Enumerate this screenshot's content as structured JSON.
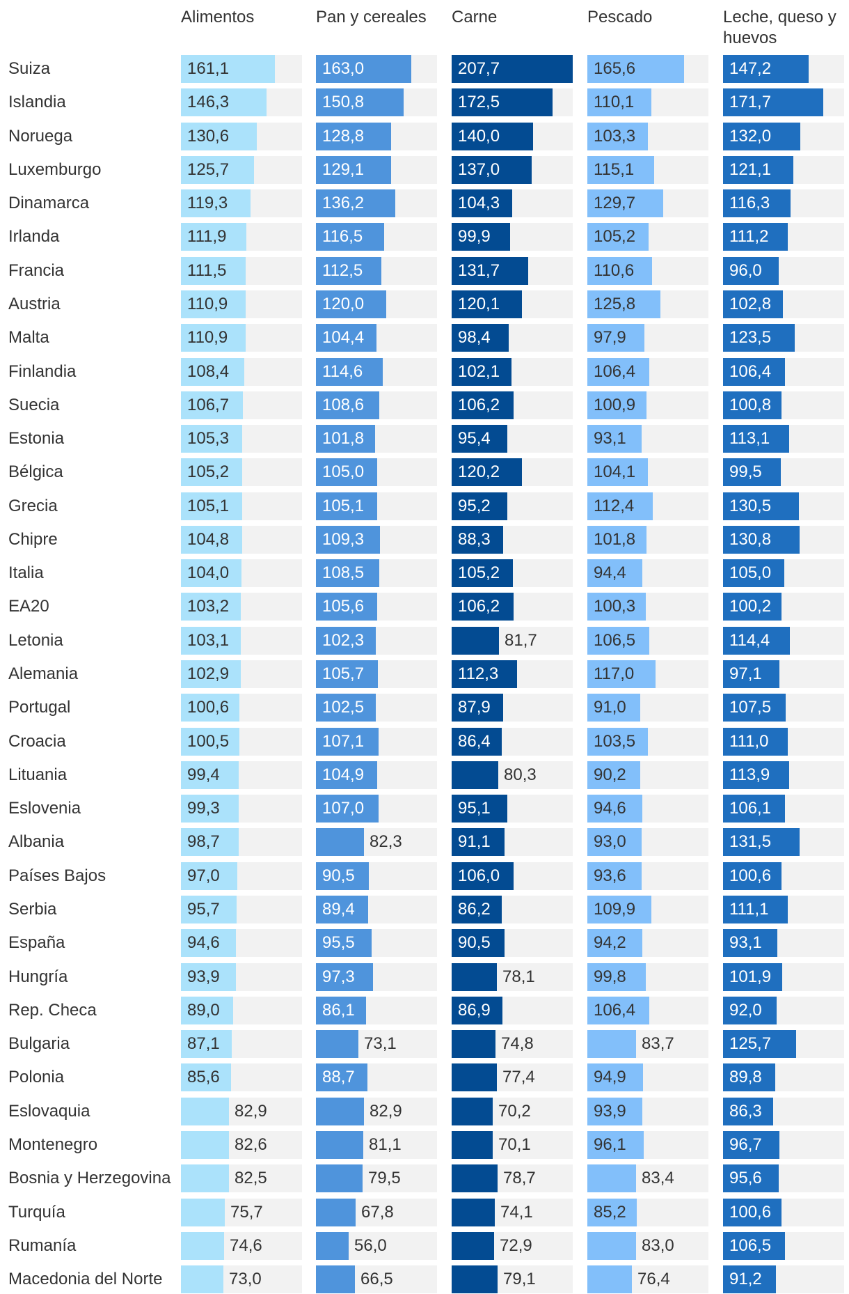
{
  "chart_data": {
    "type": "bar",
    "orientation": "horizontal",
    "columns": [
      {
        "name": "Alimentos",
        "color": "#abe2fb"
      },
      {
        "name": "Pan y cereales",
        "color": "#4f94dc"
      },
      {
        "name": "Carne",
        "color": "#034b92"
      },
      {
        "name": "Pescado",
        "color": "#82bffa"
      },
      {
        "name": "Leche, queso y huevos",
        "color": "#1f6fbf"
      }
    ],
    "value_labels": [
      "161,1",
      "163,0",
      "207,7",
      "165,6",
      "147,2",
      "146,3",
      "150,8",
      "172,5",
      "110,1",
      "171,7",
      "130,6",
      "128,8",
      "140,0",
      "103,3",
      "132,0",
      "125,7",
      "129,1",
      "137,0",
      "115,1",
      "121,1",
      "119,3",
      "136,2",
      "104,3",
      "129,7",
      "116,3",
      "111,9",
      "116,5",
      "99,9",
      "105,2",
      "111,2",
      "111,5",
      "112,5",
      "131,7",
      "110,6",
      "96,0",
      "110,9",
      "120,0",
      "120,1",
      "125,8",
      "102,8",
      "110,9",
      "104,4",
      "98,4",
      "97,9",
      "123,5",
      "108,4",
      "114,6",
      "102,1",
      "106,4",
      "106,4",
      "106,7",
      "108,6",
      "106,2",
      "100,9",
      "100,8",
      "105,3",
      "101,8",
      "95,4",
      "93,1",
      "113,1",
      "105,2",
      "105,0",
      "120,2",
      "104,1",
      "99,5",
      "105,1",
      "105,1",
      "95,2",
      "112,4",
      "130,5",
      "104,8",
      "109,3",
      "88,3",
      "101,8",
      "130,8",
      "104,0",
      "108,5",
      "105,2",
      "94,4",
      "105,0",
      "103,2",
      "105,6",
      "106,2",
      "100,3",
      "100,2",
      "103,1",
      "102,3",
      "81,7",
      "106,5",
      "114,4",
      "102,9",
      "105,7",
      "112,3",
      "117,0",
      "97,1",
      "100,6",
      "102,5",
      "87,9",
      "91,0",
      "107,5",
      "100,5",
      "107,1",
      "86,4",
      "103,5",
      "111,0",
      "99,4",
      "104,9",
      "80,3",
      "90,2",
      "113,9",
      "99,3",
      "107,0",
      "95,1",
      "94,6",
      "106,1",
      "98,7",
      "82,3",
      "91,1",
      "93,0",
      "131,5",
      "97,0",
      "90,5",
      "106,0",
      "93,6",
      "100,6",
      "95,7",
      "89,4",
      "86,2",
      "109,9",
      "111,1",
      "94,6",
      "95,5",
      "90,5",
      "94,2",
      "93,1",
      "93,9",
      "97,3",
      "78,1",
      "99,8",
      "101,9",
      "89,0",
      "86,1",
      "86,9",
      "106,4",
      "92,0",
      "87,1",
      "73,1",
      "74,8",
      "83,7",
      "125,7",
      "85,6",
      "88,7",
      "77,4",
      "94,9",
      "89,8",
      "82,9",
      "82,9",
      "70,2",
      "93,9",
      "86,3",
      "82,6",
      "81,1",
      "70,1",
      "96,1",
      "96,7",
      "82,5",
      "79,5",
      "78,7",
      "83,4",
      "95,6",
      "75,7",
      "67,8",
      "74,1",
      "85,2",
      "100,6",
      "74,6",
      "56,0",
      "72,9",
      "83,0",
      "106,5",
      "73,0",
      "66,5",
      "79,1",
      "76,4",
      "91,2"
    ],
    "rows": [
      {
        "country": "Suiza",
        "values": [
          161.1,
          163.0,
          207.7,
          165.6,
          147.2
        ]
      },
      {
        "country": "Islandia",
        "values": [
          146.3,
          150.8,
          172.5,
          110.1,
          171.7
        ]
      },
      {
        "country": "Noruega",
        "values": [
          130.6,
          128.8,
          140.0,
          103.3,
          132.0
        ]
      },
      {
        "country": "Luxemburgo",
        "values": [
          125.7,
          129.1,
          137.0,
          115.1,
          121.1
        ]
      },
      {
        "country": "Dinamarca",
        "values": [
          119.3,
          136.2,
          104.3,
          129.7,
          116.3
        ]
      },
      {
        "country": "Irlanda",
        "values": [
          111.9,
          116.5,
          99.9,
          105.2,
          111.2
        ]
      },
      {
        "country": "Francia",
        "values": [
          111.5,
          112.5,
          131.7,
          110.6,
          96.0
        ]
      },
      {
        "country": "Austria",
        "values": [
          110.9,
          120.0,
          120.1,
          125.8,
          102.8
        ]
      },
      {
        "country": "Malta",
        "values": [
          110.9,
          104.4,
          98.4,
          97.9,
          123.5
        ]
      },
      {
        "country": "Finlandia",
        "values": [
          108.4,
          114.6,
          102.1,
          106.4,
          106.4
        ]
      },
      {
        "country": "Suecia",
        "values": [
          106.7,
          108.6,
          106.2,
          100.9,
          100.8
        ]
      },
      {
        "country": "Estonia",
        "values": [
          105.3,
          101.8,
          95.4,
          93.1,
          113.1
        ]
      },
      {
        "country": "Bélgica",
        "values": [
          105.2,
          105.0,
          120.2,
          104.1,
          99.5
        ]
      },
      {
        "country": "Grecia",
        "values": [
          105.1,
          105.1,
          95.2,
          112.4,
          130.5
        ]
      },
      {
        "country": "Chipre",
        "values": [
          104.8,
          109.3,
          88.3,
          101.8,
          130.8
        ]
      },
      {
        "country": "Italia",
        "values": [
          104.0,
          108.5,
          105.2,
          94.4,
          105.0
        ]
      },
      {
        "country": "EA20",
        "values": [
          103.2,
          105.6,
          106.2,
          100.3,
          100.2
        ]
      },
      {
        "country": "Letonia",
        "values": [
          103.1,
          102.3,
          81.7,
          106.5,
          114.4
        ]
      },
      {
        "country": "Alemania",
        "values": [
          102.9,
          105.7,
          112.3,
          117.0,
          97.1
        ]
      },
      {
        "country": "Portugal",
        "values": [
          100.6,
          102.5,
          87.9,
          91.0,
          107.5
        ]
      },
      {
        "country": "Croacia",
        "values": [
          100.5,
          107.1,
          86.4,
          103.5,
          111.0
        ]
      },
      {
        "country": "Lituania",
        "values": [
          99.4,
          104.9,
          80.3,
          90.2,
          113.9
        ]
      },
      {
        "country": "Eslovenia",
        "values": [
          99.3,
          107.0,
          95.1,
          94.6,
          106.1
        ]
      },
      {
        "country": "Albania",
        "values": [
          98.7,
          82.3,
          91.1,
          93.0,
          131.5
        ]
      },
      {
        "country": "Países Bajos",
        "values": [
          97.0,
          90.5,
          106.0,
          93.6,
          100.6
        ]
      },
      {
        "country": "Serbia",
        "values": [
          95.7,
          89.4,
          86.2,
          109.9,
          111.1
        ]
      },
      {
        "country": "España",
        "values": [
          94.6,
          95.5,
          90.5,
          94.2,
          93.1
        ]
      },
      {
        "country": "Hungría",
        "values": [
          93.9,
          97.3,
          78.1,
          99.8,
          101.9
        ]
      },
      {
        "country": "Rep. Checa",
        "values": [
          89.0,
          86.1,
          86.9,
          106.4,
          92.0
        ]
      },
      {
        "country": "Bulgaria",
        "values": [
          87.1,
          73.1,
          74.8,
          83.7,
          125.7
        ]
      },
      {
        "country": "Polonia",
        "values": [
          85.6,
          88.7,
          77.4,
          94.9,
          89.8
        ]
      },
      {
        "country": "Eslovaquia",
        "values": [
          82.9,
          82.9,
          70.2,
          93.9,
          86.3
        ]
      },
      {
        "country": "Montenegro",
        "values": [
          82.6,
          81.1,
          70.1,
          96.1,
          96.7
        ]
      },
      {
        "country": "Bosnia y Herzegovina",
        "values": [
          82.5,
          79.5,
          78.7,
          83.4,
          95.6
        ]
      },
      {
        "country": "Turquía",
        "values": [
          75.7,
          67.8,
          74.1,
          85.2,
          100.6
        ]
      },
      {
        "country": "Rumanía",
        "values": [
          74.6,
          56.0,
          72.9,
          83.0,
          106.5
        ]
      },
      {
        "country": "Macedonia del Norte",
        "values": [
          73.0,
          66.5,
          79.1,
          76.4,
          91.2
        ]
      }
    ],
    "xlim": [
      0,
      207.7
    ],
    "title": "",
    "xlabel": "",
    "ylabel": ""
  }
}
